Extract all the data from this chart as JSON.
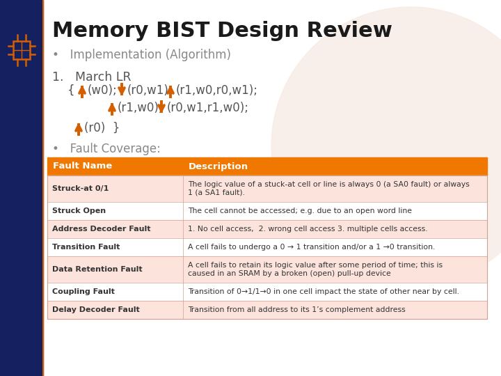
{
  "title": "Memory BIST Design Review",
  "bullet1": "Implementation (Algorithm)",
  "march_label": "1.   March LR",
  "bullet2": "Fault Coverage:",
  "table_header": [
    "Fault Name",
    "Description"
  ],
  "table_header_bg": "#f07800",
  "table_header_fg": "#ffffff",
  "table_rows": [
    [
      "Struck-at 0/1",
      "The logic value of a stuck-at cell or line is always 0 (a SA0 fault) or always\n1 (a SA1 fault)."
    ],
    [
      "Struck Open",
      "The cell cannot be accessed; e.g. due to an open word line"
    ],
    [
      "Address Decoder Fault",
      "1. No cell access,  2. wrong cell access 3. multiple cells access."
    ],
    [
      "Transition Fault",
      "A cell fails to undergo a 0 → 1 transition and/or a 1 →0 transition."
    ],
    [
      "Data Retention Fault",
      "A cell fails to retain its logic value after some period of time; this is\ncaused in an SRAM by a broken (open) pull-up device"
    ],
    [
      "Coupling Fault",
      "Transition of 0→1/1→0 in one cell impact the state of other near by cell."
    ],
    [
      "Delay Decoder Fault",
      "Transition from all address to its 1’s complement address"
    ]
  ],
  "table_row_bg_odd": "#fce4dc",
  "table_row_bg_even": "#ffffff",
  "left_bar_color": "#152060",
  "bg_color": "#ffffff",
  "title_color": "#1a1a1a",
  "arrow_color": "#d45f00",
  "text_color": "#555555",
  "gray_text": "#888888"
}
